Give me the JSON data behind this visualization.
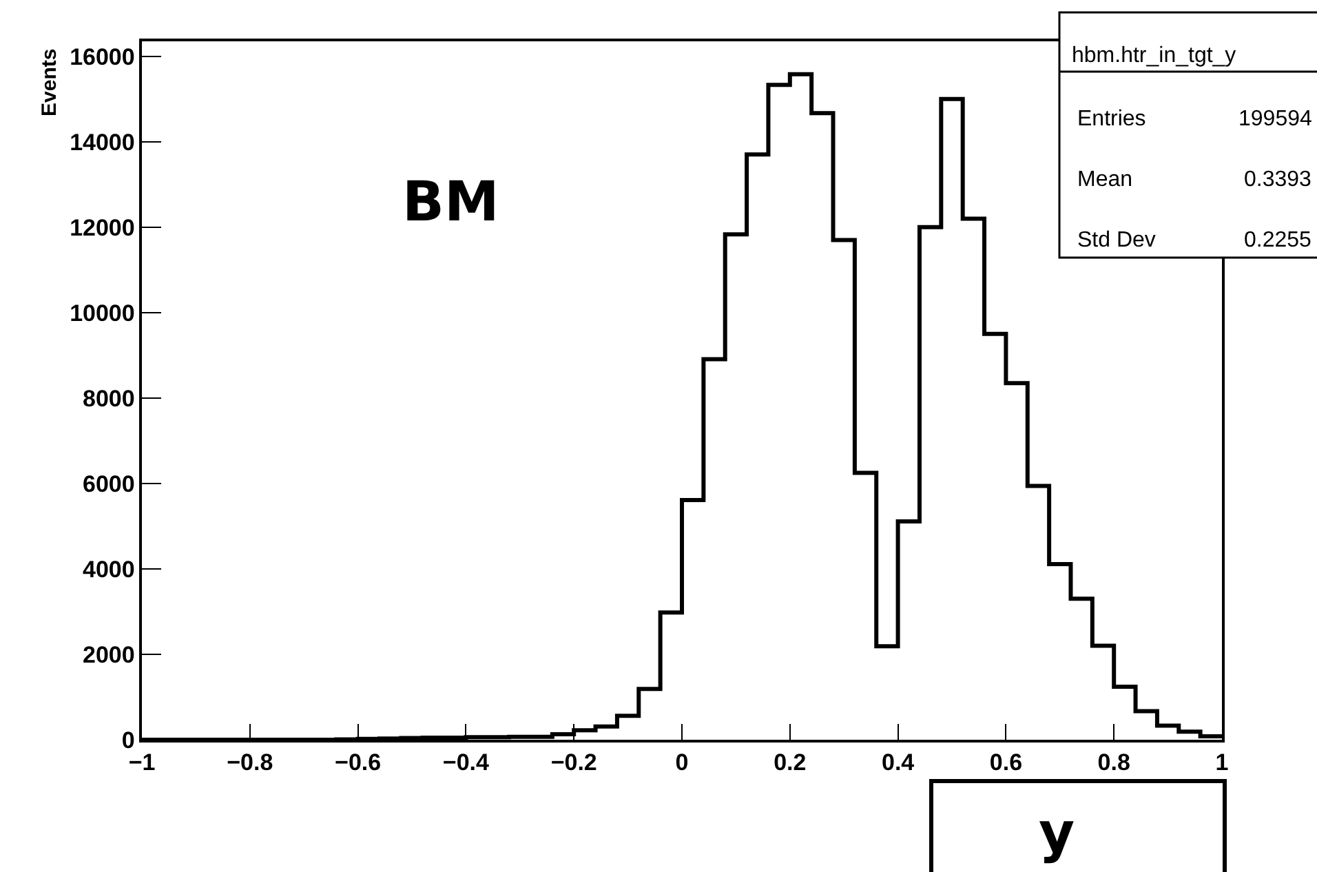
{
  "chart_data": {
    "type": "histogram",
    "xlabel": "y",
    "ylabel": "Events",
    "bins": [
      -1,
      -0.96,
      -0.92,
      -0.88,
      -0.84,
      -0.8,
      -0.76,
      -0.72,
      -0.68,
      -0.64,
      -0.6,
      -0.56,
      -0.52,
      -0.48,
      -0.44,
      -0.4,
      -0.36,
      -0.32,
      -0.28,
      -0.24,
      -0.2,
      -0.16,
      -0.12,
      -0.08,
      -0.04,
      0,
      0.04,
      0.08,
      0.12,
      0.16,
      0.2,
      0.24,
      0.28,
      0.32,
      0.36,
      0.4,
      0.44,
      0.48,
      0.52,
      0.56,
      0.6,
      0.64,
      0.68,
      0.72,
      0.76,
      0.8,
      0.84,
      0.88,
      0.92,
      0.96,
      1
    ],
    "values": [
      0,
      0,
      0,
      0,
      0,
      0,
      0,
      0,
      0,
      10,
      20,
      30,
      40,
      50,
      50,
      60,
      60,
      70,
      70,
      130,
      220,
      310,
      560,
      1190,
      2980,
      5610,
      8910,
      11830,
      13700,
      15330,
      15580,
      14670,
      11700,
      6250,
      2190,
      5110,
      12000,
      15000,
      12200,
      9500,
      8350,
      5940,
      4110,
      3300,
      2200,
      1240,
      670,
      330,
      190,
      80
    ],
    "color": "#000000",
    "xlim": [
      -1,
      1
    ],
    "xticks": [
      {
        "value": -1,
        "label": "−1"
      },
      {
        "value": -0.8,
        "label": "−0.8"
      },
      {
        "value": -0.6,
        "label": "−0.6"
      },
      {
        "value": -0.4,
        "label": "−0.4"
      },
      {
        "value": -0.2,
        "label": "−0.2"
      },
      0,
      0.2,
      0.4,
      0.6,
      0.8,
      1
    ],
    "ylim": [
      0,
      16350
    ],
    "yticks": [
      0,
      2000,
      4000,
      6000,
      8000,
      10000,
      12000,
      14000,
      16000
    ],
    "annotations": [
      "BM",
      "hbm.htr_in_tgt_y",
      "Entries",
      "199594",
      "Mean",
      "0.3393",
      "Std Dev",
      "0.2255"
    ]
  }
}
